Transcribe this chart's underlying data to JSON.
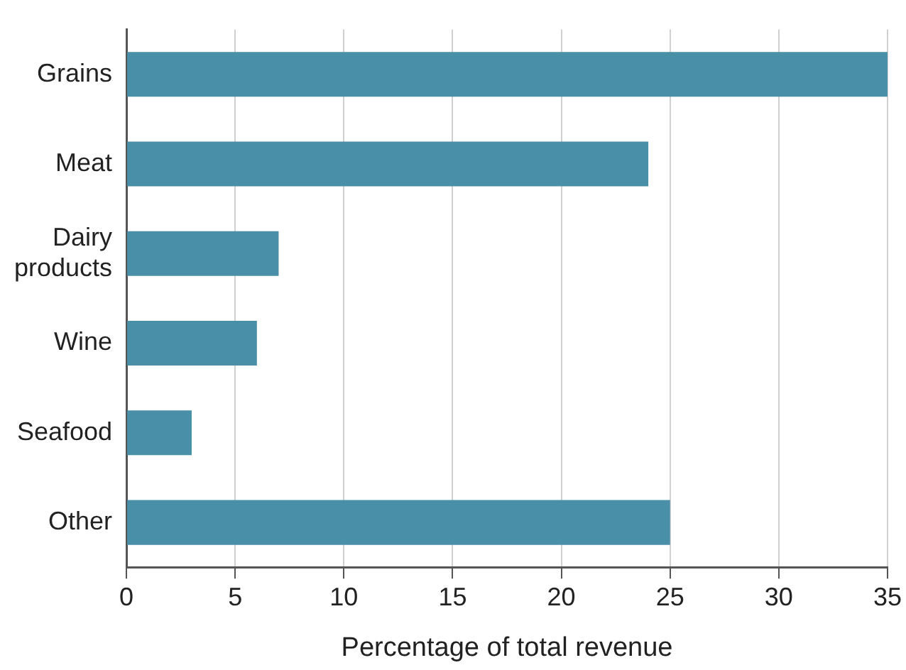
{
  "chart_data": {
    "type": "bar",
    "orientation": "horizontal",
    "xlabel": "Percentage of total revenue",
    "categories": [
      "Grains",
      "Meat",
      "Dairy products",
      "Wine",
      "Seafood",
      "Other"
    ],
    "values": [
      35,
      24,
      7,
      6,
      3,
      25
    ],
    "color": "#4a8fa8",
    "xlim": [
      0,
      35
    ],
    "xticks": [
      0,
      5,
      10,
      15,
      20,
      25,
      30,
      35
    ],
    "grid": "x",
    "legend": false
  }
}
